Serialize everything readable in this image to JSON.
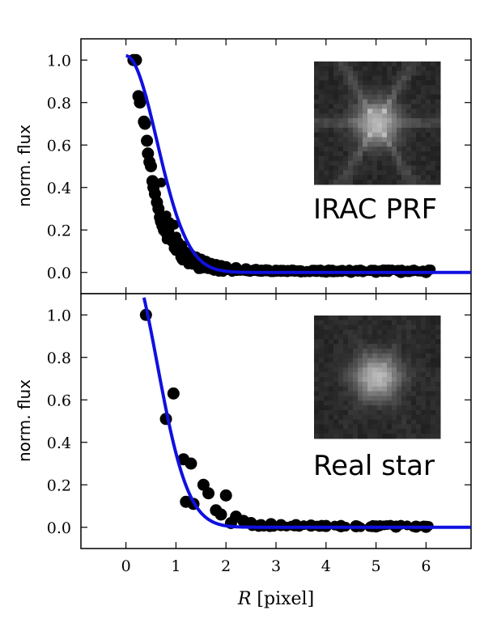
{
  "chart_data": [
    {
      "type": "scatter",
      "panel": "top",
      "ylabel": "norm. flux",
      "xlabel": "",
      "xlim": [
        -0.9,
        6.9
      ],
      "ylim": [
        -0.1,
        1.1
      ],
      "yticks": [
        "0.0",
        "0.2",
        "0.4",
        "0.6",
        "0.8",
        "1.0"
      ],
      "xticks": [
        0,
        1,
        2,
        3,
        4,
        5,
        6
      ],
      "show_xtick_labels": false,
      "grid": false,
      "inset_label": "IRAC PRF",
      "points_color": "#000000",
      "model_color": "#1010e0",
      "model": {
        "type": "gaussian",
        "amplitude": 1.02,
        "sigma": 0.62
      },
      "series": [
        {
          "kind": "points",
          "x": [
            0.15,
            0.2,
            0.25,
            0.28,
            0.32,
            0.36,
            0.38,
            0.42,
            0.44,
            0.47,
            0.5,
            0.53,
            0.55,
            0.58,
            0.62,
            0.65,
            0.68,
            0.7,
            0.73,
            0.76,
            0.8,
            0.84,
            0.88,
            0.92,
            0.96,
            1.0,
            1.05,
            1.1,
            1.15,
            1.2,
            1.3,
            1.4,
            1.5,
            1.6,
            1.7,
            1.8,
            1.9,
            2.0,
            2.2,
            2.4,
            2.6,
            2.8,
            3.0,
            3.5,
            4.0,
            4.5,
            5.0,
            5.5,
            6.0
          ],
          "y": [
            1.0,
            1.0,
            0.83,
            0.8,
            0.82,
            0.71,
            0.7,
            0.62,
            0.56,
            0.52,
            0.5,
            0.43,
            0.4,
            0.37,
            0.33,
            0.3,
            0.26,
            0.24,
            0.22,
            0.2,
            0.19,
            0.17,
            0.16,
            0.15,
            0.14,
            0.13,
            0.12,
            0.11,
            0.1,
            0.09,
            0.08,
            0.07,
            0.06,
            0.05,
            0.04,
            0.035,
            0.03,
            0.025,
            0.02,
            0.015,
            0.012,
            0.01,
            0.008,
            0.005,
            0.004,
            0.003,
            0.003,
            0.002,
            0.002
          ]
        }
      ]
    },
    {
      "type": "scatter",
      "panel": "bottom",
      "ylabel": "norm. flux",
      "xlabel": "R [pixel]",
      "xlim": [
        -0.9,
        6.9
      ],
      "ylim": [
        -0.1,
        1.1
      ],
      "yticks": [
        "0.0",
        "0.2",
        "0.4",
        "0.6",
        "0.8",
        "1.0"
      ],
      "xticks": [
        "0",
        "1",
        "2",
        "3",
        "4",
        "5",
        "6"
      ],
      "grid": false,
      "inset_label": "Real star",
      "points_color": "#000000",
      "model_color": "#1010e0",
      "model": {
        "type": "gaussian",
        "amplitude": 1.28,
        "sigma": 0.62
      },
      "series": [
        {
          "kind": "points",
          "x": [
            0.4,
            0.8,
            0.95,
            1.15,
            1.2,
            1.3,
            1.35,
            1.55,
            1.65,
            1.8,
            1.9,
            2.0,
            2.1,
            2.2,
            2.35,
            2.5,
            2.7,
            2.9,
            3.1,
            3.4,
            3.7,
            4.0,
            4.3,
            4.6,
            5.0,
            5.4,
            5.8,
            6.0
          ],
          "y": [
            1.0,
            0.51,
            0.63,
            0.32,
            0.12,
            0.3,
            0.11,
            0.2,
            0.16,
            0.08,
            0.06,
            0.15,
            0.02,
            0.05,
            0.03,
            0.02,
            0.01,
            0.015,
            0.01,
            0.01,
            0.008,
            0.006,
            0.005,
            0.005,
            0.004,
            0.003,
            0.003,
            0.002
          ]
        }
      ]
    }
  ]
}
